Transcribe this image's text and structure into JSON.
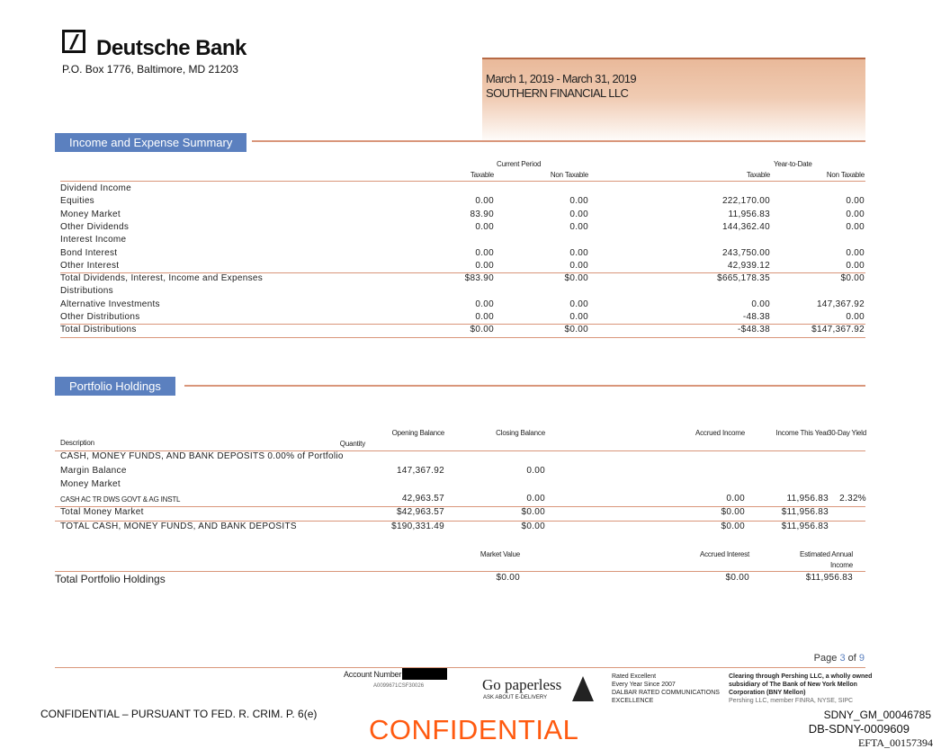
{
  "header": {
    "bank_name": "Deutsche Bank",
    "address": "P.O. Box 1776, Baltimore, MD 21203",
    "period": "March 1, 2019 - March 31, 2019",
    "client": "SOUTHERN FINANCIAL LLC"
  },
  "income": {
    "title": "Income and Expense Summary",
    "group_current": "Current Period",
    "group_ytd": "Year-to-Date",
    "columns": [
      "Taxable",
      "Non Taxable",
      "Taxable",
      "Non Taxable"
    ],
    "rows": [
      {
        "label": "Dividend Income",
        "values": []
      },
      {
        "label": "Equities",
        "values": [
          "0.00",
          "0.00",
          "222,170.00",
          "0.00"
        ]
      },
      {
        "label": "Money Market",
        "values": [
          "83.90",
          "0.00",
          "11,956.83",
          "0.00"
        ]
      },
      {
        "label": "Other Dividends",
        "values": [
          "0.00",
          "0.00",
          "144,362.40",
          "0.00"
        ]
      },
      {
        "label": "Interest Income",
        "values": []
      },
      {
        "label": "Bond Interest",
        "values": [
          "0.00",
          "0.00",
          "243,750.00",
          "0.00"
        ]
      },
      {
        "label": "Other Interest",
        "values": [
          "0.00",
          "0.00",
          "42,939.12",
          "0.00"
        ]
      },
      {
        "label": "Total Dividends, Interest, Income and Expenses",
        "values": [
          "$83.90",
          "$0.00",
          "$665,178.35",
          "$0.00"
        ],
        "total": true
      },
      {
        "label": "Distributions",
        "values": []
      },
      {
        "label": "Alternative Investments",
        "values": [
          "0.00",
          "0.00",
          "0.00",
          "147,367.92"
        ]
      },
      {
        "label": "Other Distributions",
        "values": [
          "0.00",
          "0.00",
          "-48.38",
          "0.00"
        ]
      },
      {
        "label": "Total Distributions",
        "values": [
          "$0.00",
          "$0.00",
          "-$48.38",
          "$147,367.92"
        ],
        "total": true
      }
    ]
  },
  "holdings": {
    "title": "Portfolio Holdings",
    "columns": [
      "Description",
      "Quantity",
      "Opening Balance",
      "Closing Balance",
      "Accrued Income",
      "Income This Year",
      "30-Day Yield"
    ],
    "rows": [
      {
        "label": "CASH, MONEY FUNDS, AND BANK DEPOSITS 0.00% of Portfolio",
        "values": [
          "",
          "",
          "",
          "",
          "",
          ""
        ]
      },
      {
        "label": "Margin Balance",
        "values": [
          "",
          "147,367.92",
          "0.00",
          "",
          "",
          ""
        ]
      },
      {
        "label": "Money Market",
        "values": [
          "",
          "",
          "",
          "",
          "",
          ""
        ]
      },
      {
        "label": "CASH AC TR DWS GOVT & AG INSTL",
        "values": [
          "",
          "42,963.57",
          "0.00",
          "0.00",
          "11,956.83",
          "2.32%"
        ],
        "small": true
      },
      {
        "label": "Total Money Market",
        "values": [
          "",
          "$42,963.57",
          "$0.00",
          "$0.00",
          "$11,956.83",
          ""
        ],
        "total": true
      },
      {
        "label": "TOTAL CASH, MONEY FUNDS, AND BANK DEPOSITS",
        "values": [
          "",
          "$190,331.49",
          "$0.00",
          "$0.00",
          "$11,956.83",
          ""
        ],
        "total": true
      }
    ],
    "summary": {
      "columns": [
        "Market Value",
        "Accrued Interest",
        "Estimated Annual Income"
      ],
      "label": "Total Portfolio Holdings",
      "values": [
        "$0.00",
        "$0.00",
        "$11,956.83"
      ]
    }
  },
  "footer": {
    "page_label": "Page",
    "page": "3",
    "of": "of",
    "total_pages": "9",
    "account_label": "Account Number:",
    "account_code": "A0099671CSF30026",
    "paperless": "Go paperless",
    "paperless_sub": "ASK ABOUT E-DELIVERY",
    "rated": [
      "Rated Excellent",
      "Every Year Since 2007",
      "DALBAR RATED COMMUNICATIONS",
      "EXCELLENCE"
    ],
    "clearing": [
      "Clearing through Pershing LLC, a wholly owned",
      "subsidiary of The Bank of New York Mellon",
      "Corporation (BNY Mellon)",
      "Pershing LLC, member FINRA, NYSE, SIPC"
    ],
    "confidential_note": "CONFIDENTIAL – PURSUANT TO FED. R. CRIM. P. 6(e)",
    "stamp": "CONFIDENTIAL",
    "bates1": "SDNY_GM_00046785",
    "bates2": "DB-SDNY-0009609",
    "bates3": "EFTA_00157394"
  }
}
